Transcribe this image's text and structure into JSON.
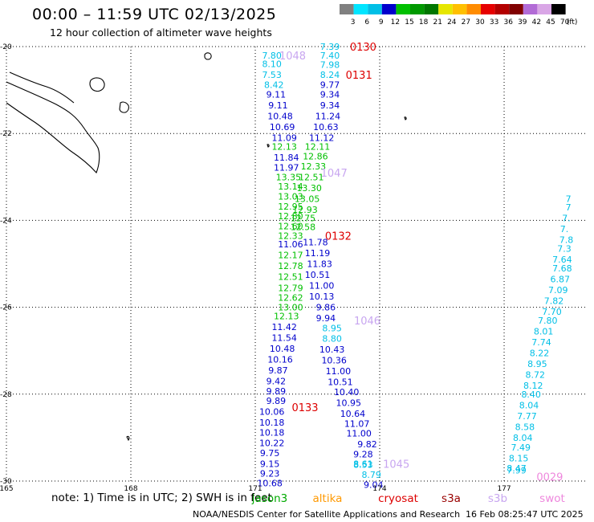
{
  "title": "00:00 – 11:59 UTC 02/13/2025",
  "subtitle": "12 hour collection of altimeter wave heights",
  "legend": {
    "colors": [
      "#808080",
      "#00e5ff",
      "#00bfe6",
      "#0000cc",
      "#00c000",
      "#009900",
      "#007700",
      "#e6e600",
      "#ffc000",
      "#ff8c00",
      "#e60000",
      "#b30000",
      "#800000",
      "#b26bd6",
      "#d9a6e6",
      "#000000"
    ],
    "labels": [
      "3",
      "6",
      "9",
      "12",
      "15",
      "18",
      "21",
      "24",
      "27",
      "30",
      "33",
      "36",
      "39",
      "42",
      "45",
      "70",
      "(ft)"
    ]
  },
  "note": "note: 1) Time is in UTC; 2) SWH is in feet",
  "satellites": [
    {
      "name": "jason3",
      "color": "#00aa00"
    },
    {
      "name": "altika",
      "color": "#ff9900"
    },
    {
      "name": "cryosat",
      "color": "#dd0000"
    },
    {
      "name": "s3a",
      "color": "#990000"
    },
    {
      "name": "s3b",
      "color": "#c8a6f0"
    },
    {
      "name": "swot",
      "color": "#ee88dd"
    }
  ],
  "credit": "NOAA/NESDIS Center for Satellite Applications and Research",
  "credit_time": "16 Feb 08:25:47 UTC 2025",
  "chart_data": {
    "type": "scatter",
    "title": "00:00 – 11:59 UTC 02/13/2025",
    "subtitle": "12 hour collection of altimeter wave heights",
    "xlim": [
      165,
      178.7
    ],
    "ylim": [
      -30,
      -20
    ],
    "xticks": [
      165,
      168,
      171,
      174,
      177
    ],
    "yticks": [
      -20,
      -22,
      -24,
      -26,
      -28,
      -30
    ],
    "ytick_labels": [
      "-20",
      "-22",
      "-24",
      "-26",
      "-28",
      "-30"
    ],
    "grid": "dotted",
    "colorbar_units": "ft",
    "time_labels": [
      {
        "text": "0130",
        "lon": 173.6,
        "lat": -20.0,
        "color": "#dd0000"
      },
      {
        "text": "0131",
        "lon": 173.5,
        "lat": -20.65,
        "color": "#dd0000"
      },
      {
        "text": "0132",
        "lon": 173.0,
        "lat": -24.35,
        "color": "#dd0000"
      },
      {
        "text": "0133",
        "lon": 172.2,
        "lat": -28.3,
        "color": "#dd0000"
      },
      {
        "text": "1048",
        "lon": 171.9,
        "lat": -20.2,
        "color": "#c8a6f0"
      },
      {
        "text": "1047",
        "lon": 172.9,
        "lat": -22.9,
        "color": "#c8a6f0"
      },
      {
        "text": "1046",
        "lon": 173.7,
        "lat": -26.3,
        "color": "#c8a6f0"
      },
      {
        "text": "1045",
        "lon": 174.4,
        "lat": -29.6,
        "color": "#c8a6f0"
      },
      {
        "text": "0029",
        "lon": 178.1,
        "lat": -29.9,
        "color": "#ee88dd"
      }
    ],
    "tracks": [
      {
        "name": "track A",
        "points": [
          {
            "lon": 171.4,
            "lat": -20.2,
            "v": "7.80",
            "c": "#00bfe6"
          },
          {
            "lon": 171.4,
            "lat": -20.4,
            "v": "8.10",
            "c": "#00bfe6"
          },
          {
            "lon": 171.4,
            "lat": -20.65,
            "v": "7.53",
            "c": "#00bfe6"
          },
          {
            "lon": 171.45,
            "lat": -20.88,
            "v": "8.42",
            "c": "#00bfe6"
          },
          {
            "lon": 171.5,
            "lat": -21.1,
            "v": "9.11",
            "c": "#0000cc"
          },
          {
            "lon": 171.55,
            "lat": -21.35,
            "v": "9.11",
            "c": "#0000cc"
          },
          {
            "lon": 171.6,
            "lat": -21.6,
            "v": "10.48",
            "c": "#0000cc"
          },
          {
            "lon": 171.65,
            "lat": -21.85,
            "v": "10.69",
            "c": "#0000cc"
          },
          {
            "lon": 171.7,
            "lat": -22.1,
            "v": "11.09",
            "c": "#0000cc"
          },
          {
            "lon": 171.7,
            "lat": -22.3,
            "v": "12.13",
            "c": "#00c000"
          },
          {
            "lon": 171.75,
            "lat": -22.55,
            "v": "11.84",
            "c": "#0000cc"
          },
          {
            "lon": 171.75,
            "lat": -22.78,
            "v": "11.97",
            "c": "#0000cc"
          },
          {
            "lon": 171.8,
            "lat": -23.0,
            "v": "13.35",
            "c": "#00c000"
          },
          {
            "lon": 171.85,
            "lat": -23.22,
            "v": "13.14",
            "c": "#00c000"
          },
          {
            "lon": 171.85,
            "lat": -23.45,
            "v": "13.03",
            "c": "#00c000"
          },
          {
            "lon": 171.85,
            "lat": -23.68,
            "v": "12.95",
            "c": "#00c000"
          },
          {
            "lon": 171.85,
            "lat": -23.9,
            "v": "12.80",
            "c": "#00c000"
          },
          {
            "lon": 171.85,
            "lat": -24.13,
            "v": "12.60",
            "c": "#00c000"
          },
          {
            "lon": 171.85,
            "lat": -24.35,
            "v": "12.33",
            "c": "#00c000"
          },
          {
            "lon": 171.85,
            "lat": -24.55,
            "v": "11.06",
            "c": "#0000cc"
          },
          {
            "lon": 171.85,
            "lat": -24.8,
            "v": "12.17",
            "c": "#00c000"
          },
          {
            "lon": 171.85,
            "lat": -25.05,
            "v": "12.78",
            "c": "#00c000"
          },
          {
            "lon": 171.85,
            "lat": -25.3,
            "v": "12.51",
            "c": "#00c000"
          },
          {
            "lon": 171.85,
            "lat": -25.55,
            "v": "12.79",
            "c": "#00c000"
          },
          {
            "lon": 171.85,
            "lat": -25.78,
            "v": "12.62",
            "c": "#00c000"
          },
          {
            "lon": 171.85,
            "lat": -26.0,
            "v": "13.00",
            "c": "#00c000"
          },
          {
            "lon": 171.75,
            "lat": -26.2,
            "v": "12.13",
            "c": "#00c000"
          },
          {
            "lon": 171.7,
            "lat": -26.45,
            "v": "11.42",
            "c": "#0000cc"
          },
          {
            "lon": 171.7,
            "lat": -26.7,
            "v": "11.54",
            "c": "#0000cc"
          },
          {
            "lon": 171.65,
            "lat": -26.95,
            "v": "10.48",
            "c": "#0000cc"
          },
          {
            "lon": 171.6,
            "lat": -27.2,
            "v": "10.16",
            "c": "#0000cc"
          },
          {
            "lon": 171.55,
            "lat": -27.45,
            "v": "9.87",
            "c": "#0000cc"
          },
          {
            "lon": 171.5,
            "lat": -27.7,
            "v": "9.42",
            "c": "#0000cc"
          },
          {
            "lon": 171.5,
            "lat": -27.93,
            "v": "9.89",
            "c": "#0000cc"
          },
          {
            "lon": 171.5,
            "lat": -28.15,
            "v": "9.89",
            "c": "#0000cc"
          },
          {
            "lon": 171.4,
            "lat": -28.4,
            "v": "10.06",
            "c": "#0000cc"
          },
          {
            "lon": 171.4,
            "lat": -28.65,
            "v": "10.18",
            "c": "#0000cc"
          },
          {
            "lon": 171.4,
            "lat": -28.88,
            "v": "10.18",
            "c": "#0000cc"
          },
          {
            "lon": 171.4,
            "lat": -29.12,
            "v": "10.22",
            "c": "#0000cc"
          },
          {
            "lon": 171.35,
            "lat": -29.35,
            "v": "9.75",
            "c": "#0000cc"
          },
          {
            "lon": 171.35,
            "lat": -29.6,
            "v": "9.15",
            "c": "#0000cc"
          },
          {
            "lon": 171.35,
            "lat": -29.82,
            "v": "9.23",
            "c": "#0000cc"
          },
          {
            "lon": 171.35,
            "lat": -30.05,
            "v": "10.68",
            "c": "#0000cc"
          }
        ]
      },
      {
        "name": "track B",
        "points": [
          {
            "lon": 172.8,
            "lat": -20.0,
            "v": "7.39",
            "c": "#00bfe6"
          },
          {
            "lon": 172.8,
            "lat": -20.2,
            "v": "7.40",
            "c": "#00bfe6"
          },
          {
            "lon": 172.8,
            "lat": -20.42,
            "v": "7.98",
            "c": "#00bfe6"
          },
          {
            "lon": 172.8,
            "lat": -20.65,
            "v": "8.24",
            "c": "#00bfe6"
          },
          {
            "lon": 172.8,
            "lat": -20.88,
            "v": "9.77",
            "c": "#0000cc"
          },
          {
            "lon": 172.8,
            "lat": -21.1,
            "v": "9.34",
            "c": "#0000cc"
          },
          {
            "lon": 172.8,
            "lat": -21.35,
            "v": "9.34",
            "c": "#0000cc"
          },
          {
            "lon": 172.75,
            "lat": -21.6,
            "v": "11.24",
            "c": "#0000cc"
          },
          {
            "lon": 172.7,
            "lat": -21.85,
            "v": "10.63",
            "c": "#0000cc"
          },
          {
            "lon": 172.6,
            "lat": -22.1,
            "v": "11.12",
            "c": "#0000cc"
          },
          {
            "lon": 172.5,
            "lat": -22.3,
            "v": "12.11",
            "c": "#00c000"
          },
          {
            "lon": 172.45,
            "lat": -22.52,
            "v": "12.86",
            "c": "#00c000"
          },
          {
            "lon": 172.4,
            "lat": -22.75,
            "v": "12.33",
            "c": "#00c000"
          },
          {
            "lon": 172.35,
            "lat": -23.0,
            "v": "12.51",
            "c": "#00c000"
          },
          {
            "lon": 172.3,
            "lat": -23.25,
            "v": "13.30",
            "c": "#00c000"
          },
          {
            "lon": 172.25,
            "lat": -23.5,
            "v": "13.05",
            "c": "#00c000"
          },
          {
            "lon": 172.2,
            "lat": -23.75,
            "v": "12.93",
            "c": "#00c000"
          },
          {
            "lon": 172.15,
            "lat": -23.95,
            "v": "12.75",
            "c": "#00c000"
          },
          {
            "lon": 172.15,
            "lat": -24.15,
            "v": "12.58",
            "c": "#00c000"
          },
          {
            "lon": 172.45,
            "lat": -24.5,
            "v": "11.78",
            "c": "#0000cc"
          },
          {
            "lon": 172.5,
            "lat": -24.75,
            "v": "11.19",
            "c": "#0000cc"
          },
          {
            "lon": 172.55,
            "lat": -25.0,
            "v": "11.83",
            "c": "#0000cc"
          },
          {
            "lon": 172.5,
            "lat": -25.25,
            "v": "10.51",
            "c": "#0000cc"
          },
          {
            "lon": 172.6,
            "lat": -25.5,
            "v": "11.00",
            "c": "#0000cc"
          },
          {
            "lon": 172.6,
            "lat": -25.75,
            "v": "10.13",
            "c": "#0000cc"
          },
          {
            "lon": 172.7,
            "lat": -26.0,
            "v": "9.86",
            "c": "#0000cc"
          },
          {
            "lon": 172.7,
            "lat": -26.25,
            "v": "9.94",
            "c": "#0000cc"
          },
          {
            "lon": 172.85,
            "lat": -26.48,
            "v": "8.95",
            "c": "#00bfe6"
          },
          {
            "lon": 172.85,
            "lat": -26.72,
            "v": "8.80",
            "c": "#00bfe6"
          },
          {
            "lon": 172.85,
            "lat": -26.97,
            "v": "10.43",
            "c": "#0000cc"
          },
          {
            "lon": 172.9,
            "lat": -27.22,
            "v": "10.36",
            "c": "#0000cc"
          },
          {
            "lon": 173.0,
            "lat": -27.47,
            "v": "11.00",
            "c": "#0000cc"
          },
          {
            "lon": 173.05,
            "lat": -27.72,
            "v": "10.51",
            "c": "#0000cc"
          },
          {
            "lon": 173.2,
            "lat": -27.95,
            "v": "10.40",
            "c": "#0000cc"
          },
          {
            "lon": 173.25,
            "lat": -28.2,
            "v": "10.95",
            "c": "#0000cc"
          },
          {
            "lon": 173.35,
            "lat": -28.45,
            "v": "10.64",
            "c": "#0000cc"
          },
          {
            "lon": 173.45,
            "lat": -28.68,
            "v": "11.07",
            "c": "#0000cc"
          },
          {
            "lon": 173.5,
            "lat": -28.9,
            "v": "11.00",
            "c": "#0000cc"
          },
          {
            "lon": 173.7,
            "lat": -29.15,
            "v": "9.82",
            "c": "#0000cc"
          },
          {
            "lon": 173.6,
            "lat": -29.38,
            "v": "9.28",
            "c": "#0000cc"
          },
          {
            "lon": 173.6,
            "lat": -29.6,
            "v": "8.61",
            "c": "#00bfe6"
          },
          {
            "lon": 173.6,
            "lat": -29.62,
            "v": "8.53",
            "c": "#00bfe6"
          },
          {
            "lon": 173.8,
            "lat": -29.85,
            "v": "8.79",
            "c": "#00bfe6"
          },
          {
            "lon": 173.85,
            "lat": -30.08,
            "v": "9.04",
            "c": "#0000cc"
          }
        ]
      },
      {
        "name": "track C",
        "points": [
          {
            "lon": 178.55,
            "lat": -23.5,
            "v": "7",
            "c": "#00bfe6"
          },
          {
            "lon": 178.55,
            "lat": -23.7,
            "v": "7",
            "c": "#00bfe6"
          },
          {
            "lon": 178.5,
            "lat": -23.95,
            "v": "7.",
            "c": "#00bfe6"
          },
          {
            "lon": 178.45,
            "lat": -24.2,
            "v": "7.",
            "c": "#00bfe6"
          },
          {
            "lon": 178.5,
            "lat": -24.45,
            "v": "7.8",
            "c": "#00bfe6"
          },
          {
            "lon": 178.45,
            "lat": -24.65,
            "v": "7.3",
            "c": "#00bfe6"
          },
          {
            "lon": 178.4,
            "lat": -24.9,
            "v": "7.64",
            "c": "#00bfe6"
          },
          {
            "lon": 178.4,
            "lat": -25.1,
            "v": "7.68",
            "c": "#00bfe6"
          },
          {
            "lon": 178.35,
            "lat": -25.35,
            "v": "6.87",
            "c": "#00bfe6"
          },
          {
            "lon": 178.3,
            "lat": -25.6,
            "v": "7.09",
            "c": "#00bfe6"
          },
          {
            "lon": 178.2,
            "lat": -25.85,
            "v": "7.82",
            "c": "#00bfe6"
          },
          {
            "lon": 178.15,
            "lat": -26.1,
            "v": "7.70",
            "c": "#00bfe6"
          },
          {
            "lon": 178.05,
            "lat": -26.3,
            "v": "7.80",
            "c": "#00bfe6"
          },
          {
            "lon": 177.95,
            "lat": -26.55,
            "v": "8.01",
            "c": "#00bfe6"
          },
          {
            "lon": 177.9,
            "lat": -26.8,
            "v": "7.74",
            "c": "#00bfe6"
          },
          {
            "lon": 177.85,
            "lat": -27.05,
            "v": "8.22",
            "c": "#00bfe6"
          },
          {
            "lon": 177.8,
            "lat": -27.3,
            "v": "8.95",
            "c": "#00bfe6"
          },
          {
            "lon": 177.75,
            "lat": -27.55,
            "v": "8.72",
            "c": "#00bfe6"
          },
          {
            "lon": 177.7,
            "lat": -27.8,
            "v": "8.12",
            "c": "#00bfe6"
          },
          {
            "lon": 177.65,
            "lat": -28.0,
            "v": "8.40",
            "c": "#00bfe6"
          },
          {
            "lon": 177.6,
            "lat": -28.25,
            "v": "8.04",
            "c": "#00bfe6"
          },
          {
            "lon": 177.55,
            "lat": -28.5,
            "v": "7.77",
            "c": "#00bfe6"
          },
          {
            "lon": 177.5,
            "lat": -28.75,
            "v": "8.58",
            "c": "#00bfe6"
          },
          {
            "lon": 177.45,
            "lat": -29.0,
            "v": "8.04",
            "c": "#00bfe6"
          },
          {
            "lon": 177.4,
            "lat": -29.22,
            "v": "7.49",
            "c": "#00bfe6"
          },
          {
            "lon": 177.35,
            "lat": -29.47,
            "v": "8.15",
            "c": "#00bfe6"
          },
          {
            "lon": 177.3,
            "lat": -29.7,
            "v": "8.47",
            "c": "#00bfe6"
          },
          {
            "lon": 177.3,
            "lat": -29.75,
            "v": "7.99",
            "c": "#00bfe6"
          }
        ]
      }
    ]
  }
}
